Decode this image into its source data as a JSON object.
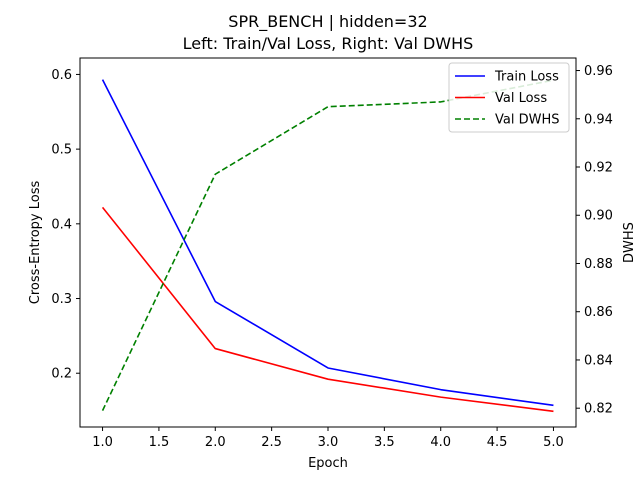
{
  "chart_data": {
    "type": "line",
    "title": "SPR_BENCH | hidden=32",
    "subtitle": "Left: Train/Val Loss, Right: Val DWHS",
    "xlabel": "Epoch",
    "ylabel_left": "Cross-Entropy Loss",
    "ylabel_right": "DWHS",
    "x": [
      1,
      2,
      3,
      4,
      5
    ],
    "xlim": [
      0.8,
      5.2
    ],
    "ylim_left": [
      0.128,
      0.622
    ],
    "ylim_right": [
      0.8122,
      0.9652
    ],
    "x_ticks": [
      1.0,
      1.5,
      2.0,
      2.5,
      3.0,
      3.5,
      4.0,
      4.5,
      5.0
    ],
    "x_tick_labels": [
      "1.0",
      "1.5",
      "2.0",
      "2.5",
      "3.0",
      "3.5",
      "4.0",
      "4.5",
      "5.0"
    ],
    "y_left_ticks": [
      0.2,
      0.3,
      0.4,
      0.5,
      0.6
    ],
    "y_left_tick_labels": [
      "0.2",
      "0.3",
      "0.4",
      "0.5",
      "0.6"
    ],
    "y_right_ticks": [
      0.82,
      0.84,
      0.86,
      0.88,
      0.9,
      0.92,
      0.94,
      0.96
    ],
    "y_right_tick_labels": [
      "0.82",
      "0.84",
      "0.86",
      "0.88",
      "0.90",
      "0.92",
      "0.94",
      "0.96"
    ],
    "grid": false,
    "legend_position": "top-right",
    "series": [
      {
        "name": "Train Loss",
        "axis": "left",
        "color": "#0000ff",
        "dash": "solid",
        "values": [
          0.593,
          0.296,
          0.207,
          0.178,
          0.157
        ]
      },
      {
        "name": "Val Loss",
        "axis": "left",
        "color": "#ff0000",
        "dash": "solid",
        "values": [
          0.422,
          0.233,
          0.192,
          0.168,
          0.149
        ]
      },
      {
        "name": "Val DWHS",
        "axis": "right",
        "color": "#008000",
        "dash": "dashed",
        "values": [
          0.819,
          0.917,
          0.945,
          0.947,
          0.956
        ]
      }
    ]
  }
}
